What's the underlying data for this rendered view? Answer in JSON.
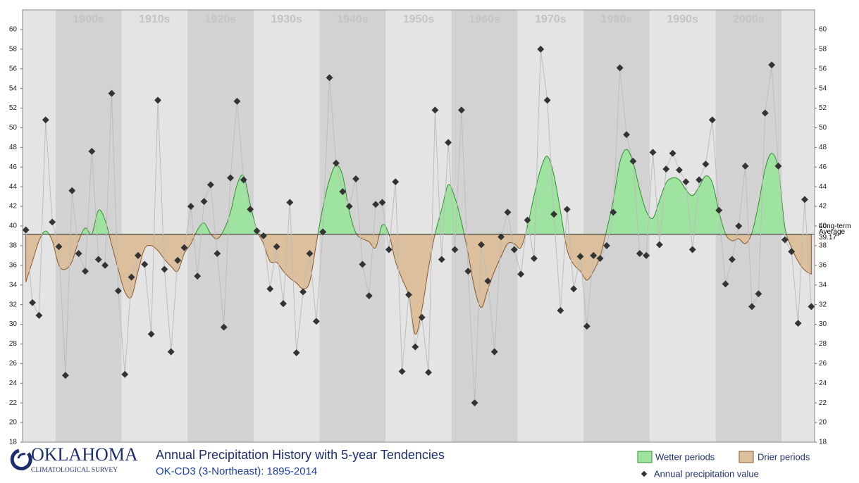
{
  "chart_data": {
    "type": "line",
    "title": "Annual Precipitation History with 5-year Tendencies",
    "subtitle": "OK-CD3 (3-Northeast): 1895-2014",
    "organization": [
      "OKLAHOMA",
      "CLIMATOLOGICAL SURVEY"
    ],
    "x": [
      1895,
      1896,
      1897,
      1898,
      1899,
      1900,
      1901,
      1902,
      1903,
      1904,
      1905,
      1906,
      1907,
      1908,
      1909,
      1910,
      1911,
      1912,
      1913,
      1914,
      1915,
      1916,
      1917,
      1918,
      1919,
      1920,
      1921,
      1922,
      1923,
      1924,
      1925,
      1926,
      1927,
      1928,
      1929,
      1930,
      1931,
      1932,
      1933,
      1934,
      1935,
      1936,
      1937,
      1938,
      1939,
      1940,
      1941,
      1942,
      1943,
      1944,
      1945,
      1946,
      1947,
      1948,
      1949,
      1950,
      1951,
      1952,
      1953,
      1954,
      1955,
      1956,
      1957,
      1958,
      1959,
      1960,
      1961,
      1962,
      1963,
      1964,
      1965,
      1966,
      1967,
      1968,
      1969,
      1970,
      1971,
      1972,
      1973,
      1974,
      1975,
      1976,
      1977,
      1978,
      1979,
      1980,
      1981,
      1982,
      1983,
      1984,
      1985,
      1986,
      1987,
      1988,
      1989,
      1990,
      1991,
      1992,
      1993,
      1994,
      1995,
      1996,
      1997,
      1998,
      1999,
      2000,
      2001,
      2002,
      2003,
      2004,
      2005,
      2006,
      2007,
      2008,
      2009,
      2010,
      2011,
      2012,
      2013,
      2014
    ],
    "series": [
      {
        "name": "Annual precipitation value",
        "color": "#333333",
        "line_color": "#bdbdbd",
        "values": [
          39.6,
          32.2,
          30.9,
          50.8,
          40.4,
          37.9,
          24.8,
          43.6,
          37.2,
          35.4,
          47.6,
          36.6,
          36.0,
          53.5,
          33.4,
          24.9,
          34.8,
          37.0,
          36.1,
          29.0,
          52.8,
          35.6,
          27.2,
          36.5,
          37.8,
          42.0,
          34.9,
          42.5,
          44.2,
          37.2,
          29.7,
          44.9,
          52.7,
          44.7,
          41.7,
          39.5,
          39.0,
          33.6,
          37.9,
          32.1,
          42.4,
          27.1,
          33.3,
          37.2,
          30.3,
          39.4,
          55.1,
          46.4,
          43.5,
          42.0,
          44.8,
          36.1,
          32.9,
          42.2,
          42.4,
          37.6,
          44.5,
          25.2,
          33.0,
          27.7,
          30.7,
          25.1,
          51.8,
          36.6,
          48.5,
          37.6,
          51.8,
          35.4,
          22.0,
          38.1,
          34.4,
          27.2,
          38.9,
          41.4,
          37.6,
          35.1,
          40.6,
          36.7,
          58.0,
          52.8,
          41.2,
          31.4,
          41.7,
          33.6,
          36.9,
          29.8,
          37.0,
          36.7,
          38.0,
          41.4,
          56.1,
          49.3,
          46.6,
          37.2,
          37.0,
          47.5,
          38.1,
          45.8,
          47.4,
          45.7,
          44.5,
          37.6,
          44.7,
          46.3,
          50.8,
          41.6,
          34.1,
          36.6,
          40.0,
          46.1,
          31.8,
          33.1,
          51.5,
          56.4,
          46.1,
          38.6,
          37.4,
          30.1,
          42.7,
          31.8
        ]
      }
    ],
    "tendency": {
      "values": [
        34.3,
        36.4,
        38.5,
        39.5,
        38.5,
        36.0,
        35.6,
        36.4,
        38.5,
        39.8,
        39.2,
        41.6,
        40.6,
        38.1,
        35.6,
        33.3,
        32.8,
        35.4,
        37.7,
        38.0,
        37.5,
        36.6,
        35.9,
        35.4,
        37.2,
        38.2,
        39.6,
        40.3,
        39.2,
        38.7,
        39.6,
        41.4,
        44.2,
        45.1,
        42.2,
        39.6,
        38.2,
        36.4,
        36.3,
        35.4,
        34.7,
        34.2,
        33.6,
        34.3,
        38.2,
        41.9,
        44.7,
        46.2,
        45.1,
        41.5,
        39.3,
        38.7,
        38.4,
        37.8,
        40.1,
        39.2,
        36.4,
        34.6,
        32.9,
        29.0,
        31.5,
        35.7,
        39.2,
        41.7,
        44.2,
        42.9,
        40.4,
        37.2,
        33.6,
        31.7,
        33.6,
        35.4,
        36.9,
        38.2,
        38.2,
        37.8,
        40.0,
        43.1,
        45.8,
        47.1,
        45.2,
        41.5,
        37.6,
        36.1,
        35.4,
        34.5,
        35.4,
        36.9,
        39.6,
        42.6,
        46.5,
        47.8,
        46.5,
        43.7,
        41.5,
        40.8,
        42.6,
        44.4,
        44.9,
        44.7,
        43.7,
        43.1,
        44.0,
        45.1,
        44.4,
        41.5,
        39.2,
        38.5,
        38.7,
        38.2,
        39.3,
        42.2,
        45.8,
        47.4,
        45.8,
        39.9,
        37.8,
        36.4,
        35.5,
        35.1
      ],
      "above_name": "Wetter periods",
      "above_color": "#9fe3a0",
      "above_stroke": "#2f8f2f",
      "below_name": "Drier periods",
      "below_color": "#dcbf9c",
      "below_stroke": "#8a5a2a"
    },
    "average": {
      "value": 39.17,
      "label": "39.17\""
    },
    "average_title": [
      "Long-term",
      "Average"
    ],
    "xlim": [
      1894.5,
      2014.5
    ],
    "xticks": [
      {
        "value": 1900,
        "label": "1900s"
      },
      {
        "value": 1910,
        "label": "1910s"
      },
      {
        "value": 1920,
        "label": "1920s"
      },
      {
        "value": 1930,
        "label": "1930s"
      },
      {
        "value": 1940,
        "label": "1940s"
      },
      {
        "value": 1950,
        "label": "1950s"
      },
      {
        "value": 1960,
        "label": "1960s"
      },
      {
        "value": 1970,
        "label": "1970s"
      },
      {
        "value": 1980,
        "label": "1980s"
      },
      {
        "value": 1990,
        "label": "1990s"
      },
      {
        "value": 2000,
        "label": "2000s"
      }
    ],
    "ylim": [
      18,
      62
    ],
    "yticks": [
      18,
      20,
      22,
      24,
      26,
      28,
      30,
      32,
      34,
      36,
      38,
      40,
      42,
      44,
      46,
      48,
      50,
      52,
      54,
      56,
      58,
      60
    ]
  }
}
